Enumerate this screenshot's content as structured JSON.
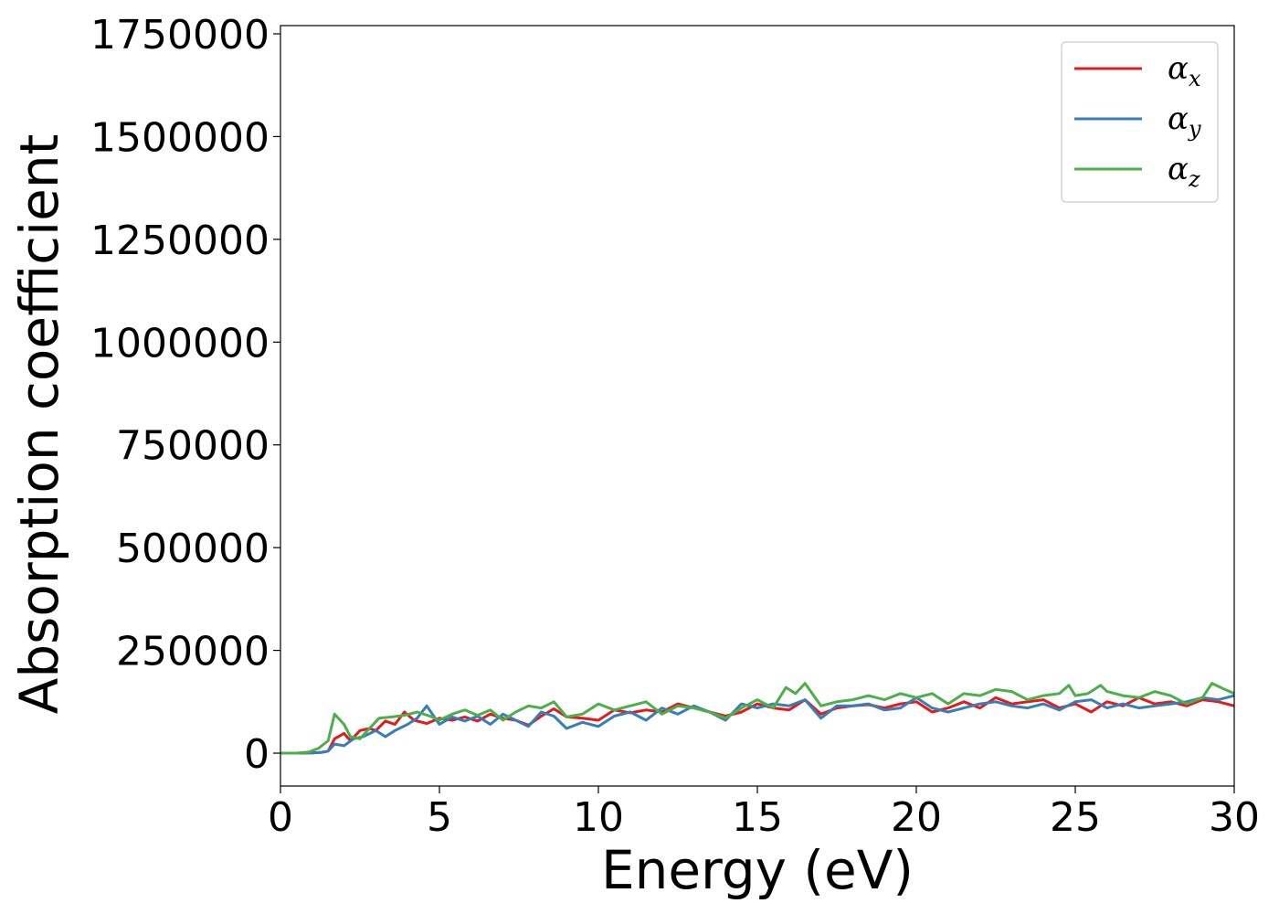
{
  "chart_data": {
    "type": "line",
    "title": "",
    "xlabel": "Energy (eV)",
    "ylabel": "Absorption coefficient",
    "xlim": [
      0,
      30
    ],
    "ylim": [
      -80000,
      1770000
    ],
    "xticks": [
      0,
      5,
      10,
      15,
      20,
      25,
      30
    ],
    "yticks": [
      0,
      250000,
      500000,
      750000,
      1000000,
      1250000,
      1500000,
      1750000
    ],
    "grid": false,
    "legend": {
      "placement": "top-right"
    },
    "series": [
      {
        "name": "α_x",
        "label": "α",
        "subscript": "x",
        "color": "#e41a1c",
        "points": [
          [
            0,
            0
          ],
          [
            0.5,
            0
          ],
          [
            1.0,
            500
          ],
          [
            1.3,
            2000
          ],
          [
            1.5,
            5000
          ],
          [
            1.7,
            35000
          ],
          [
            2.0,
            48000
          ],
          [
            2.2,
            30000
          ],
          [
            2.5,
            55000
          ],
          [
            2.8,
            60000
          ],
          [
            3.0,
            55000
          ],
          [
            3.3,
            78000
          ],
          [
            3.6,
            70000
          ],
          [
            3.9,
            100000
          ],
          [
            4.2,
            80000
          ],
          [
            4.6,
            72000
          ],
          [
            5.0,
            85000
          ],
          [
            5.4,
            80000
          ],
          [
            5.8,
            88000
          ],
          [
            6.2,
            78000
          ],
          [
            6.6,
            95000
          ],
          [
            7.0,
            85000
          ],
          [
            7.4,
            80000
          ],
          [
            7.8,
            68000
          ],
          [
            8.2,
            90000
          ],
          [
            8.6,
            108000
          ],
          [
            9.0,
            88000
          ],
          [
            9.5,
            85000
          ],
          [
            10.0,
            80000
          ],
          [
            10.5,
            105000
          ],
          [
            11.0,
            98000
          ],
          [
            11.5,
            105000
          ],
          [
            12.0,
            100000
          ],
          [
            12.5,
            120000
          ],
          [
            13.0,
            110000
          ],
          [
            13.5,
            100000
          ],
          [
            14.0,
            90000
          ],
          [
            14.5,
            100000
          ],
          [
            15.0,
            120000
          ],
          [
            15.5,
            110000
          ],
          [
            16.0,
            105000
          ],
          [
            16.5,
            130000
          ],
          [
            17.0,
            95000
          ],
          [
            17.5,
            110000
          ],
          [
            18.0,
            115000
          ],
          [
            18.5,
            118000
          ],
          [
            19.0,
            110000
          ],
          [
            19.5,
            120000
          ],
          [
            20.0,
            125000
          ],
          [
            20.5,
            100000
          ],
          [
            21.0,
            110000
          ],
          [
            21.5,
            125000
          ],
          [
            22.0,
            110000
          ],
          [
            22.5,
            135000
          ],
          [
            23.0,
            120000
          ],
          [
            23.5,
            125000
          ],
          [
            24.0,
            130000
          ],
          [
            24.5,
            110000
          ],
          [
            25.0,
            120000
          ],
          [
            25.5,
            100000
          ],
          [
            26.0,
            125000
          ],
          [
            26.5,
            115000
          ],
          [
            27.0,
            135000
          ],
          [
            27.5,
            120000
          ],
          [
            28.0,
            125000
          ],
          [
            28.5,
            115000
          ],
          [
            29.0,
            130000
          ],
          [
            29.5,
            125000
          ],
          [
            30.0,
            115000
          ]
        ]
      },
      {
        "name": "α_y",
        "label": "α",
        "subscript": "y",
        "color": "#377eb8",
        "points": [
          [
            0,
            0
          ],
          [
            0.5,
            0
          ],
          [
            1.0,
            500
          ],
          [
            1.3,
            2000
          ],
          [
            1.5,
            5000
          ],
          [
            1.7,
            22000
          ],
          [
            2.0,
            18000
          ],
          [
            2.3,
            35000
          ],
          [
            2.6,
            40000
          ],
          [
            3.0,
            55000
          ],
          [
            3.3,
            40000
          ],
          [
            3.6,
            55000
          ],
          [
            4.0,
            70000
          ],
          [
            4.3,
            85000
          ],
          [
            4.6,
            115000
          ],
          [
            5.0,
            70000
          ],
          [
            5.4,
            88000
          ],
          [
            5.8,
            78000
          ],
          [
            6.2,
            90000
          ],
          [
            6.6,
            70000
          ],
          [
            7.0,
            95000
          ],
          [
            7.4,
            80000
          ],
          [
            7.8,
            65000
          ],
          [
            8.2,
            100000
          ],
          [
            8.6,
            90000
          ],
          [
            9.0,
            60000
          ],
          [
            9.5,
            75000
          ],
          [
            10.0,
            65000
          ],
          [
            10.5,
            90000
          ],
          [
            11.0,
            100000
          ],
          [
            11.5,
            80000
          ],
          [
            12.0,
            110000
          ],
          [
            12.5,
            95000
          ],
          [
            13.0,
            115000
          ],
          [
            13.5,
            100000
          ],
          [
            14.0,
            80000
          ],
          [
            14.5,
            120000
          ],
          [
            15.0,
            110000
          ],
          [
            15.5,
            120000
          ],
          [
            16.0,
            115000
          ],
          [
            16.5,
            130000
          ],
          [
            17.0,
            85000
          ],
          [
            17.5,
            115000
          ],
          [
            18.0,
            115000
          ],
          [
            18.5,
            120000
          ],
          [
            19.0,
            105000
          ],
          [
            19.5,
            110000
          ],
          [
            20.0,
            135000
          ],
          [
            20.5,
            110000
          ],
          [
            21.0,
            100000
          ],
          [
            21.5,
            110000
          ],
          [
            22.0,
            120000
          ],
          [
            22.5,
            125000
          ],
          [
            23.0,
            115000
          ],
          [
            23.5,
            110000
          ],
          [
            24.0,
            120000
          ],
          [
            24.5,
            105000
          ],
          [
            25.0,
            125000
          ],
          [
            25.5,
            130000
          ],
          [
            26.0,
            110000
          ],
          [
            26.5,
            120000
          ],
          [
            27.0,
            110000
          ],
          [
            27.5,
            115000
          ],
          [
            28.0,
            120000
          ],
          [
            28.5,
            125000
          ],
          [
            29.0,
            135000
          ],
          [
            29.5,
            130000
          ],
          [
            30.0,
            140000
          ]
        ]
      },
      {
        "name": "α_z",
        "label": "α",
        "subscript": "z",
        "color": "#4daf4a",
        "points": [
          [
            0,
            0
          ],
          [
            0.5,
            0
          ],
          [
            0.9,
            3000
          ],
          [
            1.2,
            12000
          ],
          [
            1.5,
            30000
          ],
          [
            1.7,
            95000
          ],
          [
            2.0,
            70000
          ],
          [
            2.2,
            40000
          ],
          [
            2.5,
            35000
          ],
          [
            2.8,
            60000
          ],
          [
            3.1,
            85000
          ],
          [
            3.5,
            88000
          ],
          [
            3.9,
            92000
          ],
          [
            4.3,
            100000
          ],
          [
            4.7,
            90000
          ],
          [
            5.0,
            80000
          ],
          [
            5.4,
            95000
          ],
          [
            5.8,
            105000
          ],
          [
            6.2,
            92000
          ],
          [
            6.6,
            105000
          ],
          [
            7.0,
            80000
          ],
          [
            7.4,
            100000
          ],
          [
            7.8,
            115000
          ],
          [
            8.2,
            110000
          ],
          [
            8.6,
            125000
          ],
          [
            9.0,
            88000
          ],
          [
            9.5,
            95000
          ],
          [
            10.0,
            120000
          ],
          [
            10.5,
            105000
          ],
          [
            11.0,
            115000
          ],
          [
            11.5,
            125000
          ],
          [
            12.0,
            95000
          ],
          [
            12.5,
            115000
          ],
          [
            13.0,
            110000
          ],
          [
            13.5,
            100000
          ],
          [
            14.0,
            85000
          ],
          [
            14.5,
            110000
          ],
          [
            15.0,
            130000
          ],
          [
            15.5,
            110000
          ],
          [
            15.9,
            160000
          ],
          [
            16.2,
            145000
          ],
          [
            16.5,
            170000
          ],
          [
            17.0,
            115000
          ],
          [
            17.5,
            125000
          ],
          [
            18.0,
            130000
          ],
          [
            18.5,
            140000
          ],
          [
            19.0,
            130000
          ],
          [
            19.5,
            145000
          ],
          [
            20.0,
            135000
          ],
          [
            20.5,
            145000
          ],
          [
            21.0,
            120000
          ],
          [
            21.5,
            145000
          ],
          [
            22.0,
            140000
          ],
          [
            22.5,
            155000
          ],
          [
            23.0,
            150000
          ],
          [
            23.5,
            130000
          ],
          [
            24.0,
            140000
          ],
          [
            24.5,
            145000
          ],
          [
            24.8,
            165000
          ],
          [
            25.0,
            140000
          ],
          [
            25.4,
            145000
          ],
          [
            25.8,
            165000
          ],
          [
            26.0,
            150000
          ],
          [
            26.5,
            140000
          ],
          [
            27.0,
            135000
          ],
          [
            27.5,
            150000
          ],
          [
            28.0,
            140000
          ],
          [
            28.5,
            120000
          ],
          [
            29.0,
            135000
          ],
          [
            29.3,
            170000
          ],
          [
            29.7,
            155000
          ],
          [
            30.0,
            145000
          ]
        ]
      }
    ]
  }
}
